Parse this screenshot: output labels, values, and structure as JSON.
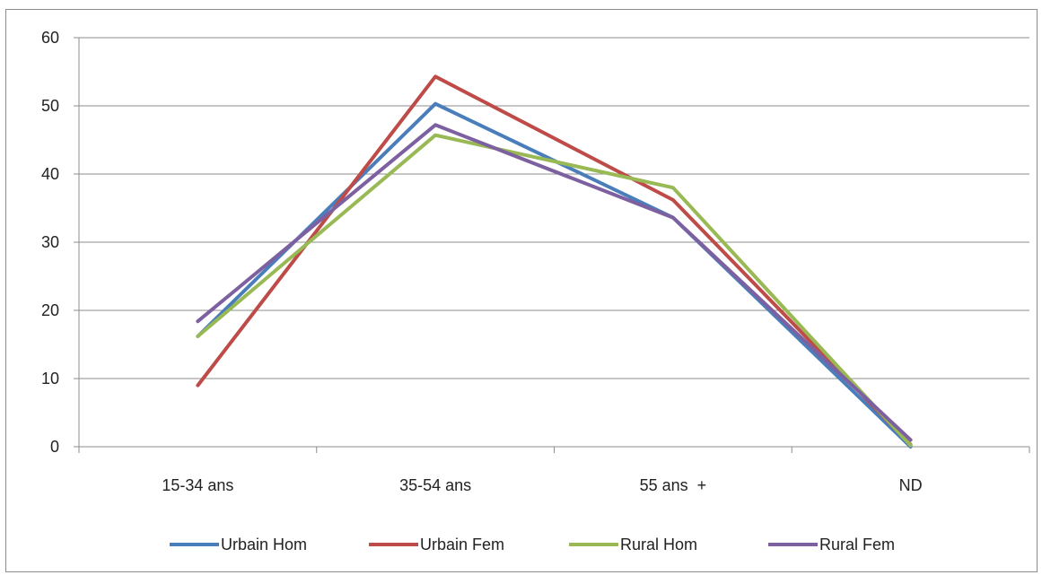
{
  "chart_data": {
    "type": "line",
    "title": "",
    "xlabel": "",
    "ylabel": "",
    "categories": [
      "15-34 ans",
      "35-54 ans",
      "55 ans  +",
      "ND"
    ],
    "ylim": [
      0,
      60
    ],
    "yticks": [
      0,
      10,
      20,
      30,
      40,
      50,
      60
    ],
    "grid": "horizontal",
    "legend_position": "bottom",
    "series": [
      {
        "name": "Urbain Hom",
        "color": "#4a7ebb",
        "values": [
          16.2,
          50.3,
          33.6,
          0.0
        ]
      },
      {
        "name": "Urbain Fem",
        "color": "#be4b48",
        "values": [
          9.0,
          54.3,
          36.2,
          0.3
        ]
      },
      {
        "name": "Rural Hom",
        "color": "#98b954",
        "values": [
          16.2,
          45.7,
          38.0,
          0.2
        ]
      },
      {
        "name": "Rural Fem",
        "color": "#7d60a0",
        "values": [
          18.4,
          47.2,
          33.6,
          1.0
        ]
      }
    ]
  }
}
